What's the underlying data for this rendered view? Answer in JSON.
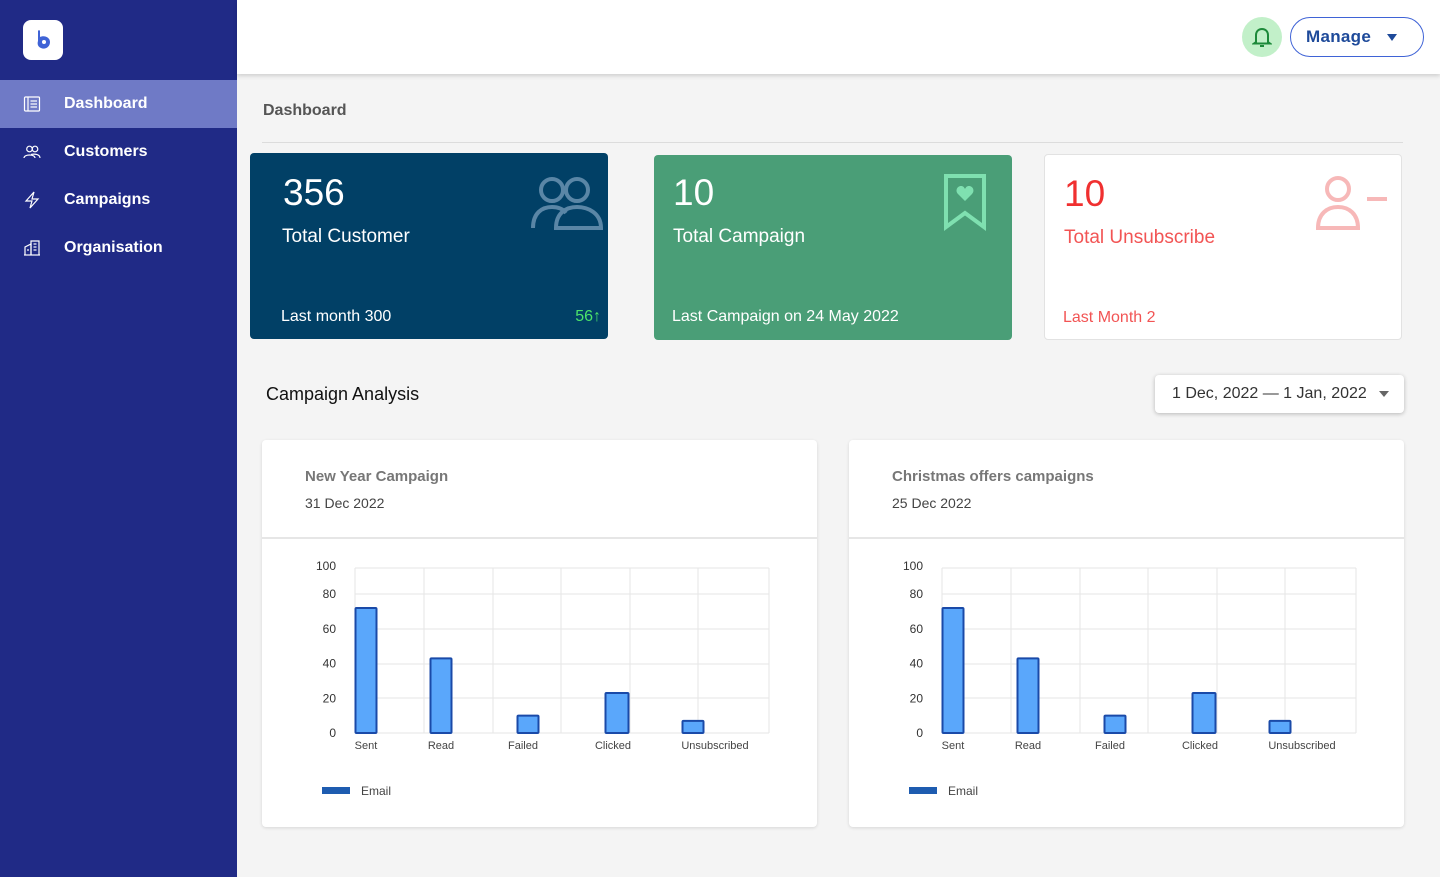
{
  "sidebar": {
    "items": [
      {
        "label": "Dashboard",
        "icon": "dashboard-icon",
        "active": true
      },
      {
        "label": "Customers",
        "icon": "users-icon",
        "active": false
      },
      {
        "label": "Campaigns",
        "icon": "lightning-icon",
        "active": false
      },
      {
        "label": "Organisation",
        "icon": "building-icon",
        "active": false
      }
    ]
  },
  "topbar": {
    "manage_label": "Manage"
  },
  "page": {
    "breadcrumb": "Dashboard"
  },
  "stats": {
    "customers": {
      "value": "356",
      "label": "Total Customer",
      "foot": "Last month 300",
      "delta": "56↑"
    },
    "campaigns": {
      "value": "10",
      "label": "Total Campaign",
      "foot": "Last Campaign on 24 May 2022"
    },
    "unsubscribe": {
      "value": "10",
      "label": "Total Unsubscribe",
      "foot": "Last Month  2"
    }
  },
  "analysis": {
    "title": "Campaign Analysis",
    "date_range": "1 Dec, 2022 — 1 Jan, 2022"
  },
  "colors": {
    "sidebar": "#202a86",
    "sidebar_active": "#6f7ac6",
    "customer_card": "#014066",
    "campaign_card": "#4a9e77",
    "unsubscribe_text": "#f03030",
    "bar_fill": "#5aa7fb",
    "bar_stroke": "#1a4aa8",
    "legend": "#1e5cb0"
  },
  "cards": [
    {
      "title": "New Year Campaign",
      "date": "31 Dec 2022"
    },
    {
      "title": "Christmas offers campaigns",
      "date": "25 Dec 2022"
    }
  ],
  "chart_data": [
    {
      "type": "bar",
      "categories": [
        "Sent",
        "Read",
        "Failed",
        "Clicked",
        "Unsubscribed"
      ],
      "series": [
        {
          "name": "Email",
          "values": [
            72,
            43,
            10,
            23,
            7
          ]
        }
      ],
      "yticks": [
        0,
        20,
        40,
        60,
        80,
        100
      ],
      "ylim": [
        0,
        95
      ],
      "grid": true,
      "legend": "bottom-left"
    },
    {
      "type": "bar",
      "categories": [
        "Sent",
        "Read",
        "Failed",
        "Clicked",
        "Unsubscribed"
      ],
      "series": [
        {
          "name": "Email",
          "values": [
            72,
            43,
            10,
            23,
            7
          ]
        }
      ],
      "yticks": [
        0,
        20,
        40,
        60,
        80,
        100
      ],
      "ylim": [
        0,
        95
      ],
      "grid": true,
      "legend": "bottom-left"
    }
  ]
}
